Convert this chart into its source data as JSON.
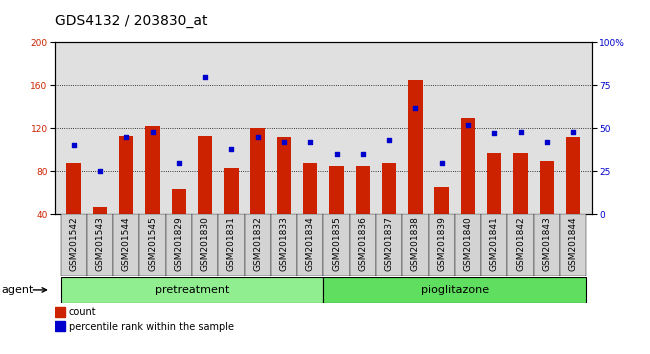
{
  "title": "GDS4132 / 203830_at",
  "categories": [
    "GSM201542",
    "GSM201543",
    "GSM201544",
    "GSM201545",
    "GSM201829",
    "GSM201830",
    "GSM201831",
    "GSM201832",
    "GSM201833",
    "GSM201834",
    "GSM201835",
    "GSM201836",
    "GSM201837",
    "GSM201838",
    "GSM201839",
    "GSM201840",
    "GSM201841",
    "GSM201842",
    "GSM201843",
    "GSM201844"
  ],
  "counts": [
    88,
    47,
    113,
    122,
    63,
    113,
    83,
    120,
    112,
    88,
    85,
    85,
    88,
    165,
    65,
    130,
    97,
    97,
    90,
    112
  ],
  "percentiles": [
    40,
    25,
    45,
    48,
    30,
    80,
    38,
    45,
    42,
    42,
    35,
    35,
    43,
    62,
    30,
    52,
    47,
    48,
    42,
    48
  ],
  "groups": [
    {
      "label": "pretreatment",
      "start": 0,
      "end": 9,
      "color": "#90ee90"
    },
    {
      "label": "pioglitazone",
      "start": 10,
      "end": 19,
      "color": "#5fde5f"
    }
  ],
  "bar_color": "#cc2200",
  "dot_color": "#0000cc",
  "ylim_left": [
    40,
    200
  ],
  "ylim_right": [
    0,
    100
  ],
  "yticks_left": [
    40,
    80,
    120,
    160,
    200
  ],
  "yticks_right": [
    0,
    25,
    50,
    75,
    100
  ],
  "background_color": "#e0e0e0",
  "title_fontsize": 10,
  "tick_fontsize": 6.5,
  "label_fontsize": 8,
  "agent_label": "agent",
  "legend_count_label": "count",
  "legend_percentile_label": "percentile rank within the sample"
}
